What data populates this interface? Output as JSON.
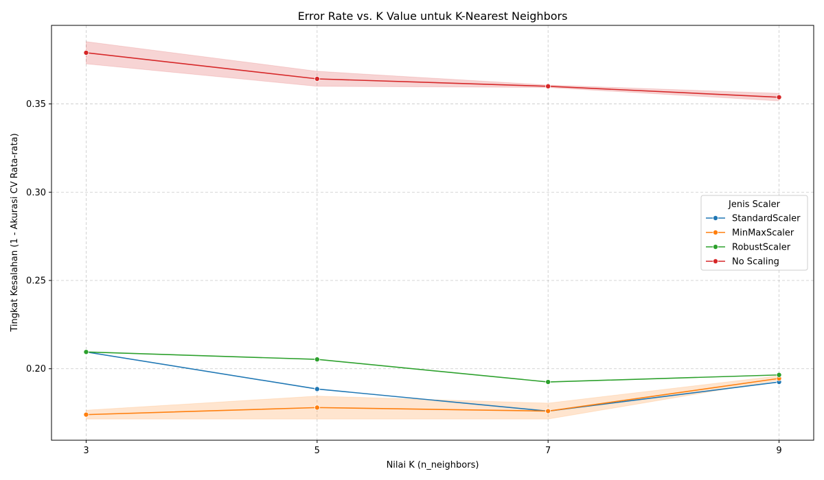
{
  "chart_data": {
    "type": "line",
    "title": "Error Rate vs. K Value untuk K-Nearest Neighbors",
    "xlabel": "Nilai K (n_neighbors)",
    "ylabel": "Tingkat Kesalahan (1 - Akurasi CV Rata-rata)",
    "x": [
      3,
      5,
      7,
      9
    ],
    "xticks": [
      "3",
      "5",
      "7",
      "9"
    ],
    "yticks": [
      "0.20",
      "0.25",
      "0.30",
      "0.35"
    ],
    "ytick_values": [
      0.2,
      0.25,
      0.3,
      0.35
    ],
    "xlim": [
      2.7,
      9.3
    ],
    "ylim": [
      0.1595,
      0.3945
    ],
    "grid": true,
    "legend": {
      "title": "Jenis Scaler",
      "placement": "center-right"
    },
    "series": [
      {
        "name": "StandardScaler",
        "color": "#1f77b4",
        "values": [
          0.2095,
          0.1885,
          0.176,
          0.1925
        ]
      },
      {
        "name": "MinMaxScaler",
        "color": "#ff7f0e",
        "values": [
          0.174,
          0.178,
          0.176,
          0.1945
        ],
        "band_low": [
          0.1715,
          0.1715,
          0.1715,
          0.1935
        ],
        "band_high": [
          0.1765,
          0.1845,
          0.1805,
          0.196
        ]
      },
      {
        "name": "RobustScaler",
        "color": "#2ca02c",
        "values": [
          0.2095,
          0.2053,
          0.1925,
          0.1965
        ]
      },
      {
        "name": "No Scaling",
        "color": "#d62728",
        "values": [
          0.379,
          0.3642,
          0.36,
          0.3538
        ],
        "band_low": [
          0.3727,
          0.36,
          0.3593,
          0.3517
        ],
        "band_high": [
          0.3853,
          0.3685,
          0.3607,
          0.356
        ]
      }
    ]
  }
}
